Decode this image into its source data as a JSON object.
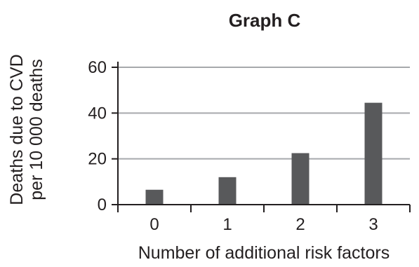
{
  "chart_data": {
    "type": "bar",
    "title": "Graph C",
    "xlabel": "Number of additional risk factors",
    "ylabel_lines": [
      "Deaths due to CVD",
      "per 10 000 deaths"
    ],
    "categories": [
      "0",
      "1",
      "2",
      "3"
    ],
    "values": [
      6.5,
      12,
      22.5,
      44.5
    ],
    "ylim": [
      0,
      60
    ],
    "yticks": [
      0,
      20,
      40,
      60
    ],
    "ytick_labels": [
      "0",
      "20",
      "40",
      "60"
    ],
    "grid": "horizontal",
    "legend": "none",
    "colors": {
      "bar": "#58595b",
      "axis": "#231f20",
      "grid": "#a7a9ac"
    }
  }
}
